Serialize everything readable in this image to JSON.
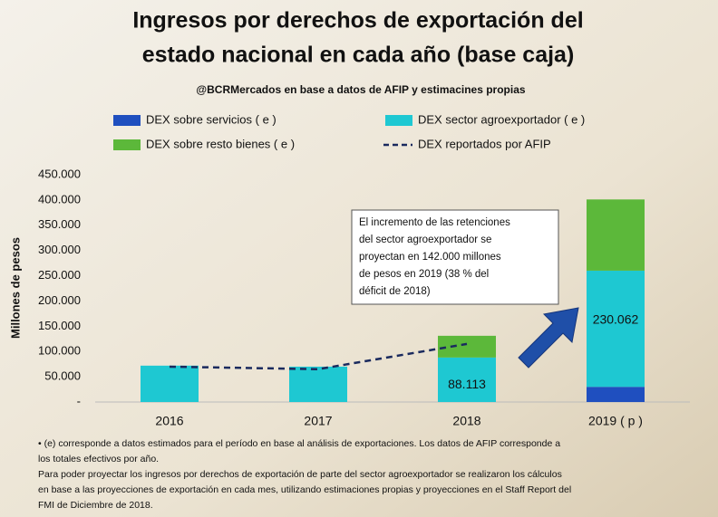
{
  "chart_data": {
    "type": "stacked-bar",
    "title": [
      "Ingresos por derechos de exportación del",
      "estado nacional en cada año (base caja)"
    ],
    "subtitle": "@BCRMercados en base a datos de AFIP y estimacines propias",
    "y_label": "Millones de pesos",
    "categories": [
      "2016",
      "2017",
      "2018",
      "2019 ( p )"
    ],
    "series": [
      {
        "name": "DEX sobre servicios ( e )",
        "color": "#1f4fbf",
        "values": [
          0,
          0,
          0,
          30000
        ]
      },
      {
        "name": "DEX sector agroexportador ( e )",
        "color": "#1ec8d2",
        "values": [
          72000,
          70000,
          88113,
          230062
        ],
        "value_labels": [
          null,
          null,
          "88.113",
          "230.062"
        ]
      },
      {
        "name": "DEX sobre resto bienes ( e )",
        "color": "#5cb83a",
        "values": [
          0,
          0,
          43000,
          141000
        ]
      },
      {
        "name": "DEX reportados por AFIP",
        "color": "#1a2a5e",
        "kind": "line",
        "dashed": true,
        "values": [
          70000,
          65000,
          115000,
          null
        ]
      }
    ],
    "ylim": [
      0,
      450000
    ],
    "yticks": [
      {
        "value": 0,
        "label": "-"
      },
      {
        "value": 50000,
        "label": "50.000"
      },
      {
        "value": 100000,
        "label": "100.000"
      },
      {
        "value": 150000,
        "label": "150.000"
      },
      {
        "value": 200000,
        "label": "200.000"
      },
      {
        "value": 250000,
        "label": "250.000"
      },
      {
        "value": 300000,
        "label": "300.000"
      },
      {
        "value": 350000,
        "label": "350.000"
      },
      {
        "value": 400000,
        "label": "400.000"
      },
      {
        "value": 450000,
        "label": "450.000"
      }
    ],
    "legend": "top",
    "annotation": [
      "El incremento de las retenciones",
      "del sector agroexportador  se",
      "proyectan en 142.000 millones",
      "de pesos en 2019 (38 % del",
      "déficit de 2018)"
    ],
    "footnotes": [
      "• (e)  corresponde a datos estimados para el período  en base al análisis de exportaciones. Los datos de AFIP corresponde  a",
      "los totales efectivos por  año.",
      "Para poder proyectar  los ingresos por derechos de exportación de parte del sector agroexportador  se realizaron los cálculos",
      "en base a las proyecciones de exportación en cada mes, utilizando estimaciones propias y proyecciones  en el Staff Report del",
      "FMI de Diciembre de 2018."
    ]
  }
}
